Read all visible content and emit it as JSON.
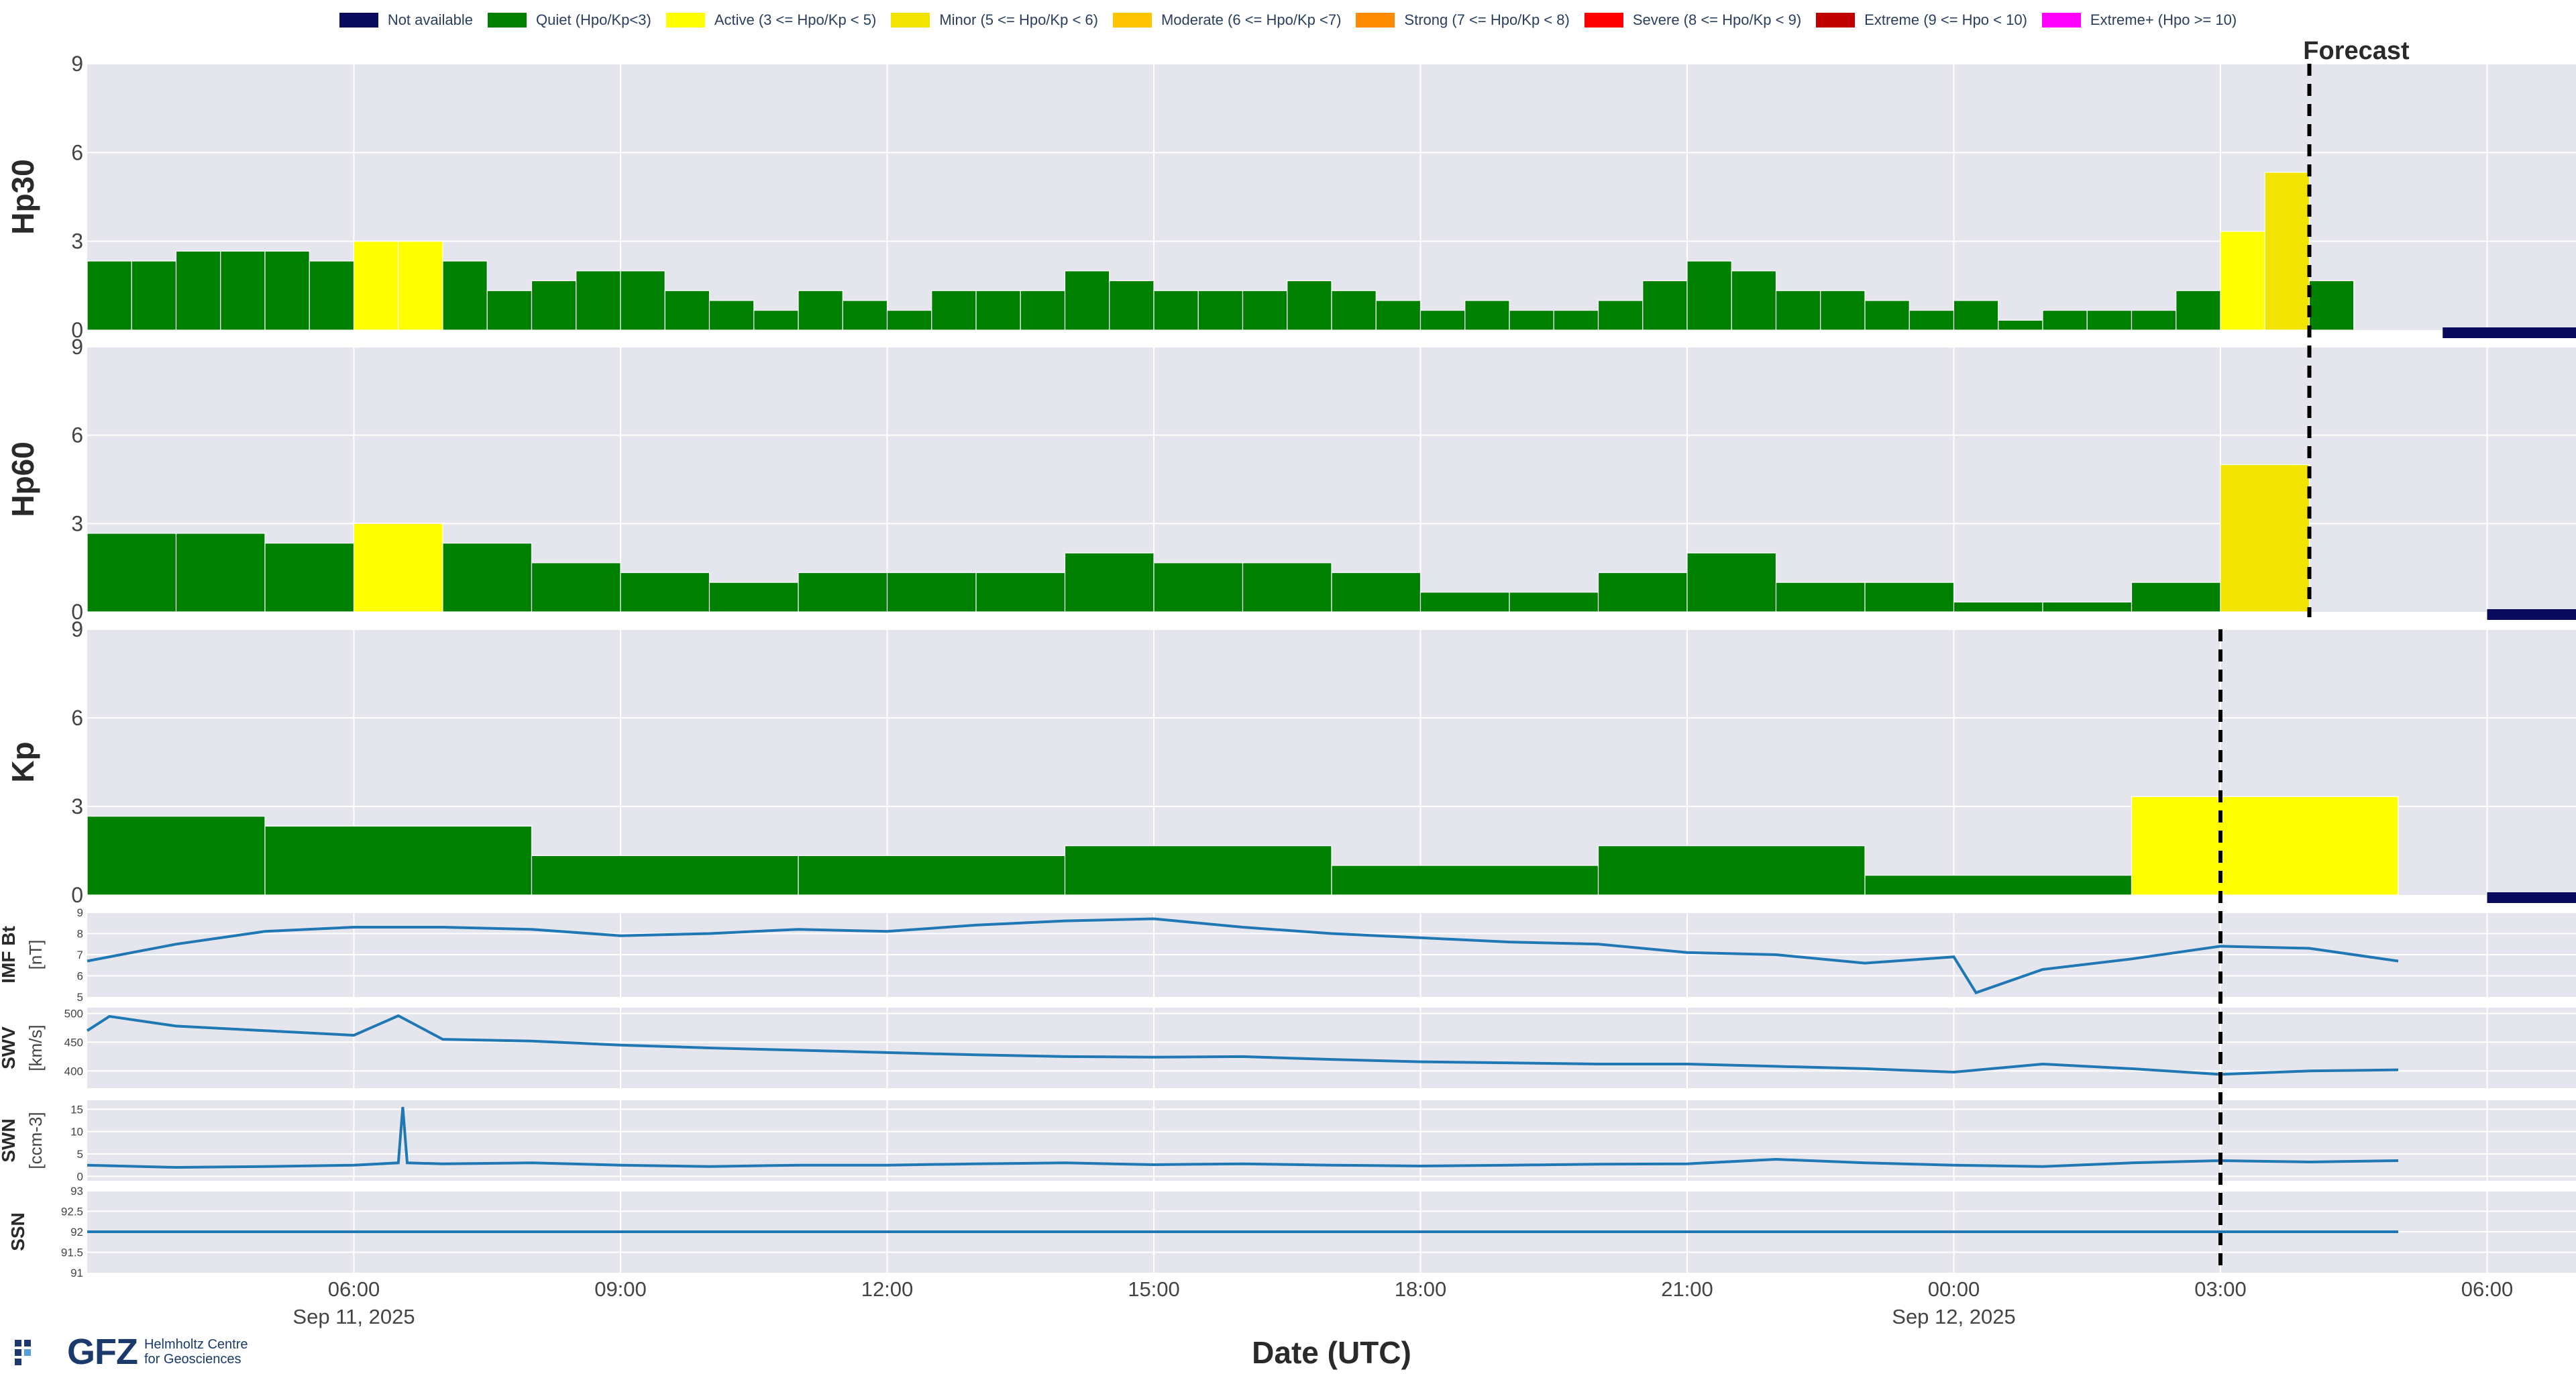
{
  "legend": [
    {
      "label": "Not available",
      "color": "#0b0b5e"
    },
    {
      "label": "Quiet (Hpo/Kp<3)",
      "color": "#008000"
    },
    {
      "label": "Active (3 <= Hpo/Kp < 5)",
      "color": "#ffff00"
    },
    {
      "label": "Minor (5 <= Hpo/Kp < 6)",
      "color": "#f2e400"
    },
    {
      "label": "Moderate (6 <= Hpo/Kp <7)",
      "color": "#ffc300"
    },
    {
      "label": "Strong (7 <= Hpo/Kp < 8)",
      "color": "#ff8c00"
    },
    {
      "label": "Severe (8 <= Hpo/Kp < 9)",
      "color": "#ff0000"
    },
    {
      "label": "Extreme (9 <= Hpo < 10)",
      "color": "#c00000"
    },
    {
      "label": "Extreme+ (Hpo >= 10)",
      "color": "#ff00ff"
    }
  ],
  "forecast_label": "Forecast",
  "xlabel": "Date (UTC)",
  "logo": {
    "name": "GFZ",
    "sub1": "Helmholtz Centre",
    "sub2": "for Geosciences"
  },
  "chart_data": [
    {
      "type": "bar",
      "ylabel": "Hp30",
      "ylim": [
        0,
        9
      ],
      "yticks": [
        "0",
        "3",
        "6",
        "9"
      ],
      "interval_hours": 0.5,
      "start": "2025-09-11 03:00",
      "values": [
        2.333,
        2.333,
        2.667,
        2.667,
        2.667,
        2.333,
        3.0,
        3.0,
        2.333,
        1.333,
        1.667,
        2.0,
        2.0,
        1.333,
        1.0,
        0.667,
        1.333,
        1.0,
        0.667,
        1.333,
        1.333,
        1.333,
        2.0,
        1.667,
        1.333,
        1.333,
        1.333,
        1.667,
        1.333,
        1.0,
        0.667,
        1.0,
        0.667,
        0.667,
        1.0,
        1.667,
        2.333,
        2.0,
        1.333,
        1.333,
        1.0,
        0.667,
        1.0,
        0.333,
        0.667,
        0.667,
        0.667,
        1.333,
        3.333,
        5.333,
        1.667
      ],
      "not_available_from": "2025-09-12 05:30",
      "forecast_at": "2025-09-12 04:00"
    },
    {
      "type": "bar",
      "ylabel": "Hp60",
      "ylim": [
        0,
        9
      ],
      "yticks": [
        "0",
        "3",
        "6",
        "9"
      ],
      "interval_hours": 1,
      "start": "2025-09-11 03:00",
      "values": [
        2.667,
        2.667,
        2.333,
        3.0,
        2.333,
        1.667,
        1.333,
        1.0,
        1.333,
        1.333,
        1.333,
        2.0,
        1.667,
        1.667,
        1.333,
        0.667,
        0.667,
        1.333,
        2.0,
        1.0,
        1.0,
        0.333,
        0.333,
        1.0,
        5.0
      ],
      "not_available_from": "2025-09-12 06:00",
      "forecast_at": "2025-09-12 04:00"
    },
    {
      "type": "bar",
      "ylabel": "Kp",
      "ylim": [
        0,
        9
      ],
      "yticks": [
        "0",
        "3",
        "6",
        "9"
      ],
      "interval_hours": 3,
      "start": "2025-09-11 03:00",
      "values": [
        2.667,
        2.333,
        1.333,
        1.333,
        1.667,
        1.0,
        1.667,
        0.667,
        3.333
      ],
      "widths_hours": [
        2,
        3,
        3,
        3,
        3,
        3,
        3,
        3,
        3
      ],
      "not_available_from": "2025-09-12 06:00",
      "forecast_at": "2025-09-12 03:00"
    },
    {
      "type": "line",
      "ylabel": "IMF Bt",
      "yunit": "[nT]",
      "ylim": [
        5,
        9
      ],
      "yticks": [
        "5",
        "6",
        "7",
        "8",
        "9"
      ],
      "x": [
        "2025-09-11 03:00",
        "2025-09-11 04:00",
        "2025-09-11 05:00",
        "2025-09-11 06:00",
        "2025-09-11 07:00",
        "2025-09-11 08:00",
        "2025-09-11 09:00",
        "2025-09-11 10:00",
        "2025-09-11 11:00",
        "2025-09-11 12:00",
        "2025-09-11 13:00",
        "2025-09-11 14:00",
        "2025-09-11 15:00",
        "2025-09-11 16:00",
        "2025-09-11 17:00",
        "2025-09-11 18:00",
        "2025-09-11 19:00",
        "2025-09-11 20:00",
        "2025-09-11 21:00",
        "2025-09-11 22:00",
        "2025-09-11 23:00",
        "2025-09-12 00:00",
        "2025-09-12 00:15",
        "2025-09-12 01:00",
        "2025-09-12 02:00",
        "2025-09-12 03:00",
        "2025-09-12 04:00",
        "2025-09-12 05:00"
      ],
      "values": [
        6.7,
        7.5,
        8.1,
        8.3,
        8.3,
        8.2,
        7.9,
        8.0,
        8.2,
        8.1,
        8.4,
        8.6,
        8.7,
        8.3,
        8.0,
        7.8,
        7.6,
        7.5,
        7.1,
        7.0,
        6.6,
        6.9,
        5.2,
        6.3,
        6.8,
        7.4,
        7.3,
        6.7
      ]
    },
    {
      "type": "line",
      "ylabel": "SWV",
      "yunit": "[km/s]",
      "ylim": [
        370,
        510
      ],
      "yticks": [
        "400",
        "450",
        "500"
      ],
      "x": [
        "2025-09-11 03:00",
        "2025-09-11 03:15",
        "2025-09-11 04:00",
        "2025-09-11 05:00",
        "2025-09-11 06:00",
        "2025-09-11 06:30",
        "2025-09-11 07:00",
        "2025-09-11 08:00",
        "2025-09-11 09:00",
        "2025-09-11 10:00",
        "2025-09-11 11:00",
        "2025-09-11 12:00",
        "2025-09-11 13:00",
        "2025-09-11 14:00",
        "2025-09-11 15:00",
        "2025-09-11 16:00",
        "2025-09-11 17:00",
        "2025-09-11 18:00",
        "2025-09-11 19:00",
        "2025-09-11 20:00",
        "2025-09-11 21:00",
        "2025-09-11 22:00",
        "2025-09-11 23:00",
        "2025-09-12 00:00",
        "2025-09-12 01:00",
        "2025-09-12 02:00",
        "2025-09-12 03:00",
        "2025-09-12 04:00",
        "2025-09-12 05:00"
      ],
      "values": [
        470,
        495,
        478,
        470,
        462,
        496,
        455,
        452,
        445,
        440,
        436,
        432,
        428,
        425,
        424,
        425,
        420,
        416,
        414,
        412,
        412,
        408,
        404,
        398,
        412,
        404,
        394,
        400,
        402
      ]
    },
    {
      "type": "line",
      "ylabel": "SWN",
      "yunit": "[ccm-3]",
      "ylim": [
        -1,
        17
      ],
      "yticks": [
        "0",
        "5",
        "10",
        "15"
      ],
      "x": [
        "2025-09-11 03:00",
        "2025-09-11 04:00",
        "2025-09-11 05:00",
        "2025-09-11 06:00",
        "2025-09-11 06:30",
        "2025-09-11 06:33",
        "2025-09-11 06:36",
        "2025-09-11 07:00",
        "2025-09-11 08:00",
        "2025-09-11 09:00",
        "2025-09-11 10:00",
        "2025-09-11 11:00",
        "2025-09-11 12:00",
        "2025-09-11 13:00",
        "2025-09-11 14:00",
        "2025-09-11 15:00",
        "2025-09-11 16:00",
        "2025-09-11 17:00",
        "2025-09-11 18:00",
        "2025-09-11 19:00",
        "2025-09-11 20:00",
        "2025-09-11 21:00",
        "2025-09-11 22:00",
        "2025-09-11 23:00",
        "2025-09-12 00:00",
        "2025-09-12 01:00",
        "2025-09-12 02:00",
        "2025-09-12 03:00",
        "2025-09-12 04:00",
        "2025-09-12 05:00"
      ],
      "values": [
        2.5,
        2.0,
        2.2,
        2.5,
        3.0,
        15.5,
        3.0,
        2.8,
        3.0,
        2.5,
        2.2,
        2.5,
        2.5,
        2.8,
        3.0,
        2.6,
        2.8,
        2.5,
        2.3,
        2.5,
        2.7,
        2.8,
        3.8,
        3.0,
        2.5,
        2.2,
        3.0,
        3.5,
        3.2,
        3.5
      ]
    },
    {
      "type": "line",
      "ylabel": "SSN",
      "ylim": [
        91,
        93
      ],
      "yticks": [
        "91",
        "91.5",
        "92",
        "92.5",
        "93"
      ],
      "x": [
        "2025-09-11 03:00",
        "2025-09-12 05:00"
      ],
      "values": [
        92,
        92
      ]
    }
  ],
  "x_ticks": [
    {
      "time": "06:00",
      "date": "Sep 11, 2025"
    },
    {
      "time": "09:00",
      "date": ""
    },
    {
      "time": "12:00",
      "date": ""
    },
    {
      "time": "15:00",
      "date": ""
    },
    {
      "time": "18:00",
      "date": ""
    },
    {
      "time": "21:00",
      "date": ""
    },
    {
      "time": "00:00",
      "date": "Sep 12, 2025"
    },
    {
      "time": "03:00",
      "date": ""
    },
    {
      "time": "06:00",
      "date": ""
    }
  ]
}
